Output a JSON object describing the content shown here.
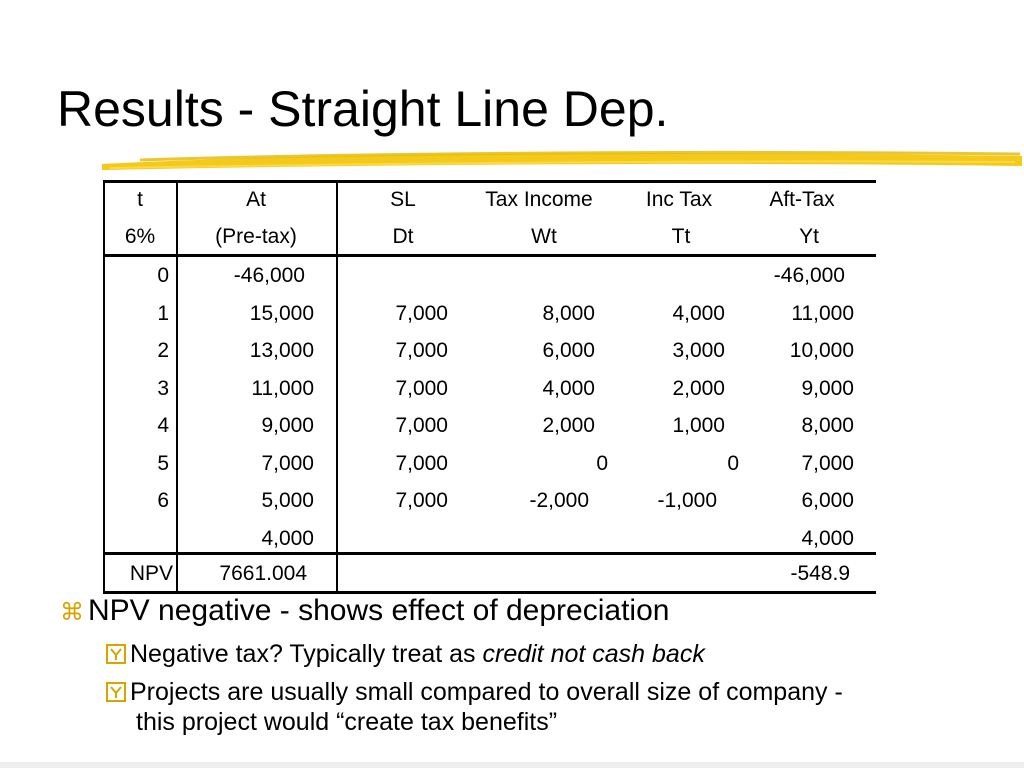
{
  "slide": {
    "title": "Results - Straight Line Dep.",
    "accent_color": "#f2c400",
    "bullet_color": "#d9a400"
  },
  "table": {
    "header_row1": [
      "t",
      "At",
      "SL",
      "Tax  Income",
      "Inc  Tax",
      "Aft-Tax"
    ],
    "header_row2": [
      "6%",
      "(Pre-tax)",
      "Dt",
      "Wt",
      "Tt",
      "Yt"
    ],
    "rows": [
      [
        "0",
        "-46,000",
        "",
        "",
        "",
        "-46,000"
      ],
      [
        "1",
        "15,000",
        "7,000",
        "8,000",
        "4,000",
        "11,000"
      ],
      [
        "2",
        "13,000",
        "7,000",
        "6,000",
        "3,000",
        "10,000"
      ],
      [
        "3",
        "11,000",
        "7,000",
        "4,000",
        "2,000",
        "9,000"
      ],
      [
        "4",
        "9,000",
        "7,000",
        "2,000",
        "1,000",
        "8,000"
      ],
      [
        "5",
        "7,000",
        "7,000",
        "0",
        "0",
        "7,000"
      ],
      [
        "6",
        "5,000",
        "7,000",
        "-2,000",
        "-1,000",
        "6,000"
      ],
      [
        "",
        "4,000",
        "",
        "",
        "",
        "4,000"
      ]
    ],
    "npv_row": [
      "NPV",
      "7661.004",
      "",
      "",
      "",
      "-548.9"
    ]
  },
  "bullets": {
    "main": "NPV negative - shows effect of depreciation",
    "sub1_prefix": "Negative tax?  Typically treat as ",
    "sub1_emphasis": "credit not cash back",
    "sub2_line1": "Projects are usually small compared to overall size of company -",
    "sub2_line2": "this project would “create tax benefits”"
  },
  "icons": {
    "main_bullet": "command-key-icon",
    "sub_bullet": "checkbox-y-icon"
  }
}
